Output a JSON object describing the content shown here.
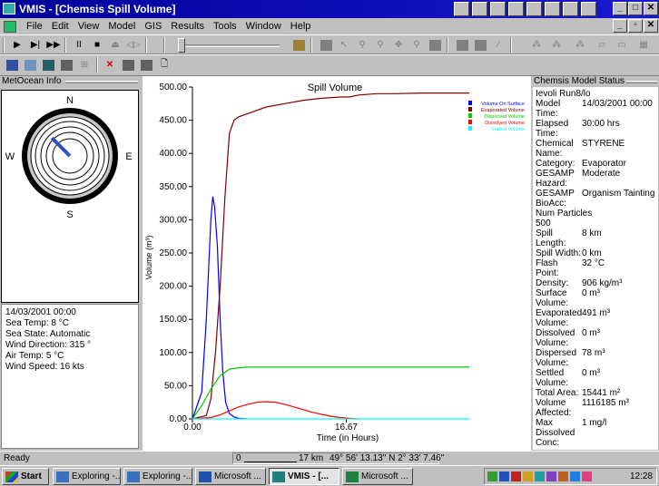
{
  "window": {
    "title": "VMIS - [Chemsis Spill Volume]",
    "minimize": "_",
    "maximize": "□",
    "close": "✕",
    "child_minimize": "_",
    "child_restore": "▫",
    "child_close": "✕"
  },
  "menu": [
    "File",
    "Edit",
    "View",
    "Model",
    "GIS",
    "Results",
    "Tools",
    "Window",
    "Help"
  ],
  "toolbar": {
    "play": "▶",
    "step": "▶|",
    "fast": "▶▶",
    "pause": "II",
    "stop": "■",
    "eject": "⏏",
    "rewind": "◁▷"
  },
  "metocean": {
    "header": "MetOcean Info",
    "compass": {
      "n": "N",
      "s": "S",
      "e": "E",
      "w": "W",
      "wind_direction_deg": 315
    },
    "lines": [
      "14/03/2001 00:00",
      "Sea Temp: 8 °C",
      "Sea State: Automatic",
      "Wind Direction: 315 °",
      "Air Temp: 5 °C",
      "Wind Speed: 16 kts"
    ]
  },
  "chart_data": {
    "type": "line",
    "title": "Spill Volume",
    "xlabel": "Time (in Hours)",
    "ylabel": "Volume (m³)",
    "xlim": [
      0,
      30
    ],
    "ylim": [
      0,
      500
    ],
    "x_tick_labels": [
      "0.00",
      "16.67"
    ],
    "x_ticks": [
      0,
      16.67
    ],
    "y_tick_labels": [
      "0.00",
      "50.00",
      "100.00",
      "150.00",
      "200.00",
      "250.00",
      "300.00",
      "350.00",
      "400.00",
      "450.00",
      "500.00"
    ],
    "y_ticks": [
      0,
      50,
      100,
      150,
      200,
      250,
      300,
      350,
      400,
      450,
      500
    ],
    "legend_position": "top-right",
    "series": [
      {
        "name": "Volume On Surface",
        "color": "#0000ff",
        "x": [
          0,
          1,
          1.5,
          2,
          2.2,
          2.4,
          2.7,
          3,
          3.3,
          3.6,
          4,
          4.5,
          5,
          6
        ],
        "y": [
          0,
          40,
          150,
          300,
          335,
          320,
          260,
          150,
          70,
          25,
          8,
          3,
          1,
          0
        ]
      },
      {
        "name": "Evaporated Volume",
        "color": "#800000",
        "x": [
          0,
          1.5,
          2,
          2.5,
          3,
          3.5,
          4,
          4.5,
          5,
          6,
          8,
          10,
          12,
          14,
          16,
          17,
          18,
          20,
          22,
          25,
          28,
          30
        ],
        "y": [
          0,
          5,
          30,
          100,
          200,
          330,
          430,
          450,
          455,
          460,
          470,
          475,
          480,
          483,
          485,
          485,
          488,
          490,
          490,
          491,
          491,
          491
        ]
      },
      {
        "name": "Dispersed Volume",
        "color": "#00cc00",
        "x": [
          0,
          1,
          2,
          3,
          4,
          5,
          6,
          8,
          10,
          15,
          20,
          25,
          30
        ],
        "y": [
          0,
          20,
          45,
          65,
          75,
          77,
          78,
          78,
          78,
          78,
          78,
          78,
          78
        ]
      },
      {
        "name": "Dissolved Volume",
        "color": "#ff0000",
        "x": [
          0,
          2,
          3,
          4,
          5,
          6,
          7,
          8,
          9,
          10,
          11,
          12,
          13,
          14,
          15,
          16,
          17,
          18
        ],
        "y": [
          0,
          2,
          6,
          12,
          18,
          22,
          25,
          26,
          25,
          22,
          18,
          14,
          10,
          7,
          4,
          2,
          1,
          0
        ]
      },
      {
        "name": "Settled Volume",
        "color": "#00ffff",
        "x": [
          0,
          30
        ],
        "y": [
          0,
          0
        ]
      }
    ]
  },
  "model_status": {
    "header": "Chemsis Model Status",
    "lines": [
      {
        "k": "Ievoli Run8/lo",
        "v": ""
      },
      {
        "k": "Model Time:",
        "v": "14/03/2001 00:00"
      },
      {
        "k": "Elapsed Time:",
        "v": "30:00 hrs"
      },
      {
        "k": "Chemical Name:",
        "v": "STYRENE"
      },
      {
        "k": "Category:",
        "v": "Evaporator"
      },
      {
        "k": "GESAMP Hazard:",
        "v": "Moderate"
      },
      {
        "k": "GESAMP BioAcc:",
        "v": "Organism Tainting"
      },
      {
        "k": "Num Particles",
        "v": ""
      },
      {
        "k": "500",
        "v": ""
      },
      {
        "k": "Spill Length:",
        "v": "8 km"
      },
      {
        "k": "Spill Width:",
        "v": "0 km"
      },
      {
        "k": "Flash Point:",
        "v": "32 °C"
      },
      {
        "k": "Density:",
        "v": "906 kg/m³"
      },
      {
        "k": "Surface Volume:",
        "v": "0 m³"
      },
      {
        "k": "Evaporated Volume:",
        "v": "491 m³"
      },
      {
        "k": "Dissolved Volume:",
        "v": "0 m³"
      },
      {
        "k": "Dispersed Volume:",
        "v": "78 m³"
      },
      {
        "k": "Settled Volume:",
        "v": "0 m³"
      },
      {
        "k": "Total Area:",
        "v": "15441 m²"
      },
      {
        "k": "Volume Affected:",
        "v": "1116185 m³"
      },
      {
        "k": "Max Dissolved Conc:",
        "v": "1 mg/l"
      }
    ]
  },
  "statusbar": {
    "ready": "Ready",
    "scale_start": "0",
    "scale_end": "17 km",
    "coordinates": "49° 56' 13.13\" N 2° 33' 7.46\""
  },
  "taskbar": {
    "start": "Start",
    "items": [
      "Exploring -...",
      "Exploring -...",
      "Microsoft ...",
      "VMIS - [...",
      "Microsoft ..."
    ],
    "active_index": 3,
    "clock": "12:28"
  }
}
